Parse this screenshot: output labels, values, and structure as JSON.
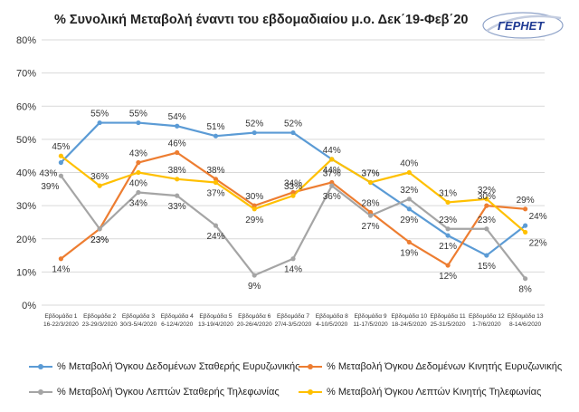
{
  "chart_data": {
    "type": "line",
    "title": "% Συνολική Μεταβολή έναντι του εβδομαδιαίου μ.ο. Δεκ΄19-Φεβ΄20",
    "xlabel": "",
    "ylabel": "",
    "ylim": [
      0,
      80
    ],
    "yticks": [
      "0%",
      "10%",
      "20%",
      "30%",
      "40%",
      "50%",
      "60%",
      "70%",
      "80%"
    ],
    "grid": true,
    "legend_position": "bottom",
    "categories": [
      [
        "Εβδομάδα 1",
        "16-22/3/2020"
      ],
      [
        "Εβδομάδα 2",
        "23-29/3/2020"
      ],
      [
        "Εβδομάδα 3",
        "30/3-5/4/2020"
      ],
      [
        "Εβδομάδα 4",
        "6-12/4/2020"
      ],
      [
        "Εβδομάδα 5",
        "13-19/4/2020"
      ],
      [
        "Εβδομάδα 6",
        "20-26/4/2020"
      ],
      [
        "Εβδομάδα 7",
        "27/4-3/5/2020"
      ],
      [
        "Εβδομάδα 8",
        "4-10/5/2020"
      ],
      [
        "Εβδομάδα 9",
        "11-17/5/2020"
      ],
      [
        "Εβδομάδα 10",
        "18-24/5/2020"
      ],
      [
        "Εβδομάδα 11",
        "25-31/5/2020"
      ],
      [
        "Εβδομάδα 12",
        "1-7/6/2020"
      ],
      [
        "Εβδομάδα 13",
        "8-14/6/2020"
      ]
    ],
    "series": [
      {
        "name": "% Μεταβολή Όγκου Δεδομένων Σταθερής Ευρυζωνικής",
        "color": "#5b9bd5",
        "values": [
          43,
          55,
          55,
          54,
          51,
          52,
          52,
          44,
          37,
          29,
          21,
          15,
          24
        ],
        "labels": [
          "43%",
          "55%",
          "55%",
          "54%",
          "51%",
          "52%",
          "52%",
          "44%",
          "37%",
          "29%",
          "21%",
          "15%",
          "24%"
        ]
      },
      {
        "name": "% Μεταβολή Όγκου Δεδομένων Κινητής Ευρυζωνικής",
        "color": "#ed7d31",
        "values": [
          14,
          23,
          43,
          46,
          38,
          30,
          34,
          37,
          28,
          19,
          12,
          30,
          29
        ],
        "labels": [
          "14%",
          "23%",
          "43%",
          "46%",
          "38%",
          "30%",
          "34%",
          "37%",
          "28%",
          "19%",
          "12%",
          "30%",
          "29%"
        ]
      },
      {
        "name": "% Μεταβολή Όγκου Λεπτών Σταθερής Τηλεφωνίας",
        "color": "#a5a5a5",
        "values": [
          39,
          23,
          34,
          33,
          24,
          9,
          14,
          36,
          27,
          32,
          23,
          23,
          8
        ],
        "labels": [
          "39%",
          "23%",
          "34%",
          "33%",
          "24%",
          "9%",
          "14%",
          "36%",
          "27%",
          "32%",
          "23%",
          "23%",
          "8%"
        ]
      },
      {
        "name": "% Μεταβολή Όγκου Λεπτών Κινητής Τηλεφωνίας",
        "color": "#ffc000",
        "values": [
          45,
          36,
          40,
          38,
          37,
          29,
          33,
          44,
          37,
          40,
          31,
          32,
          22
        ],
        "labels": [
          "45%",
          "36%",
          "40%",
          "38%",
          "37%",
          "29%",
          "33%",
          "44%",
          "37%",
          "40%",
          "31%",
          "32%",
          "22%"
        ]
      }
    ]
  },
  "logo": {
    "text": "ΓΕΡΗΕΤ",
    "color": "#1f3a93"
  }
}
